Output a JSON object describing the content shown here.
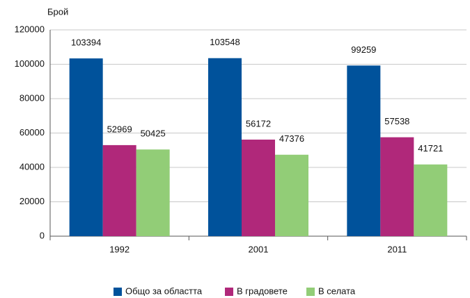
{
  "chart_data": {
    "type": "bar",
    "y_axis_label": "Брой",
    "categories": [
      "1992",
      "2001",
      "2011"
    ],
    "series": [
      {
        "name": "Общо за областта",
        "color": "#00529b",
        "values": [
          103394,
          103548,
          99259
        ]
      },
      {
        "name": "В градовете",
        "color": "#b0287a",
        "values": [
          52969,
          56172,
          57538
        ]
      },
      {
        "name": "В селата",
        "color": "#92cd77",
        "values": [
          50425,
          47376,
          41721
        ]
      }
    ],
    "ylim": [
      0,
      120000
    ],
    "yticks": [
      0,
      20000,
      40000,
      60000,
      80000,
      100000,
      120000
    ],
    "grid": true,
    "legend": "bottom"
  }
}
